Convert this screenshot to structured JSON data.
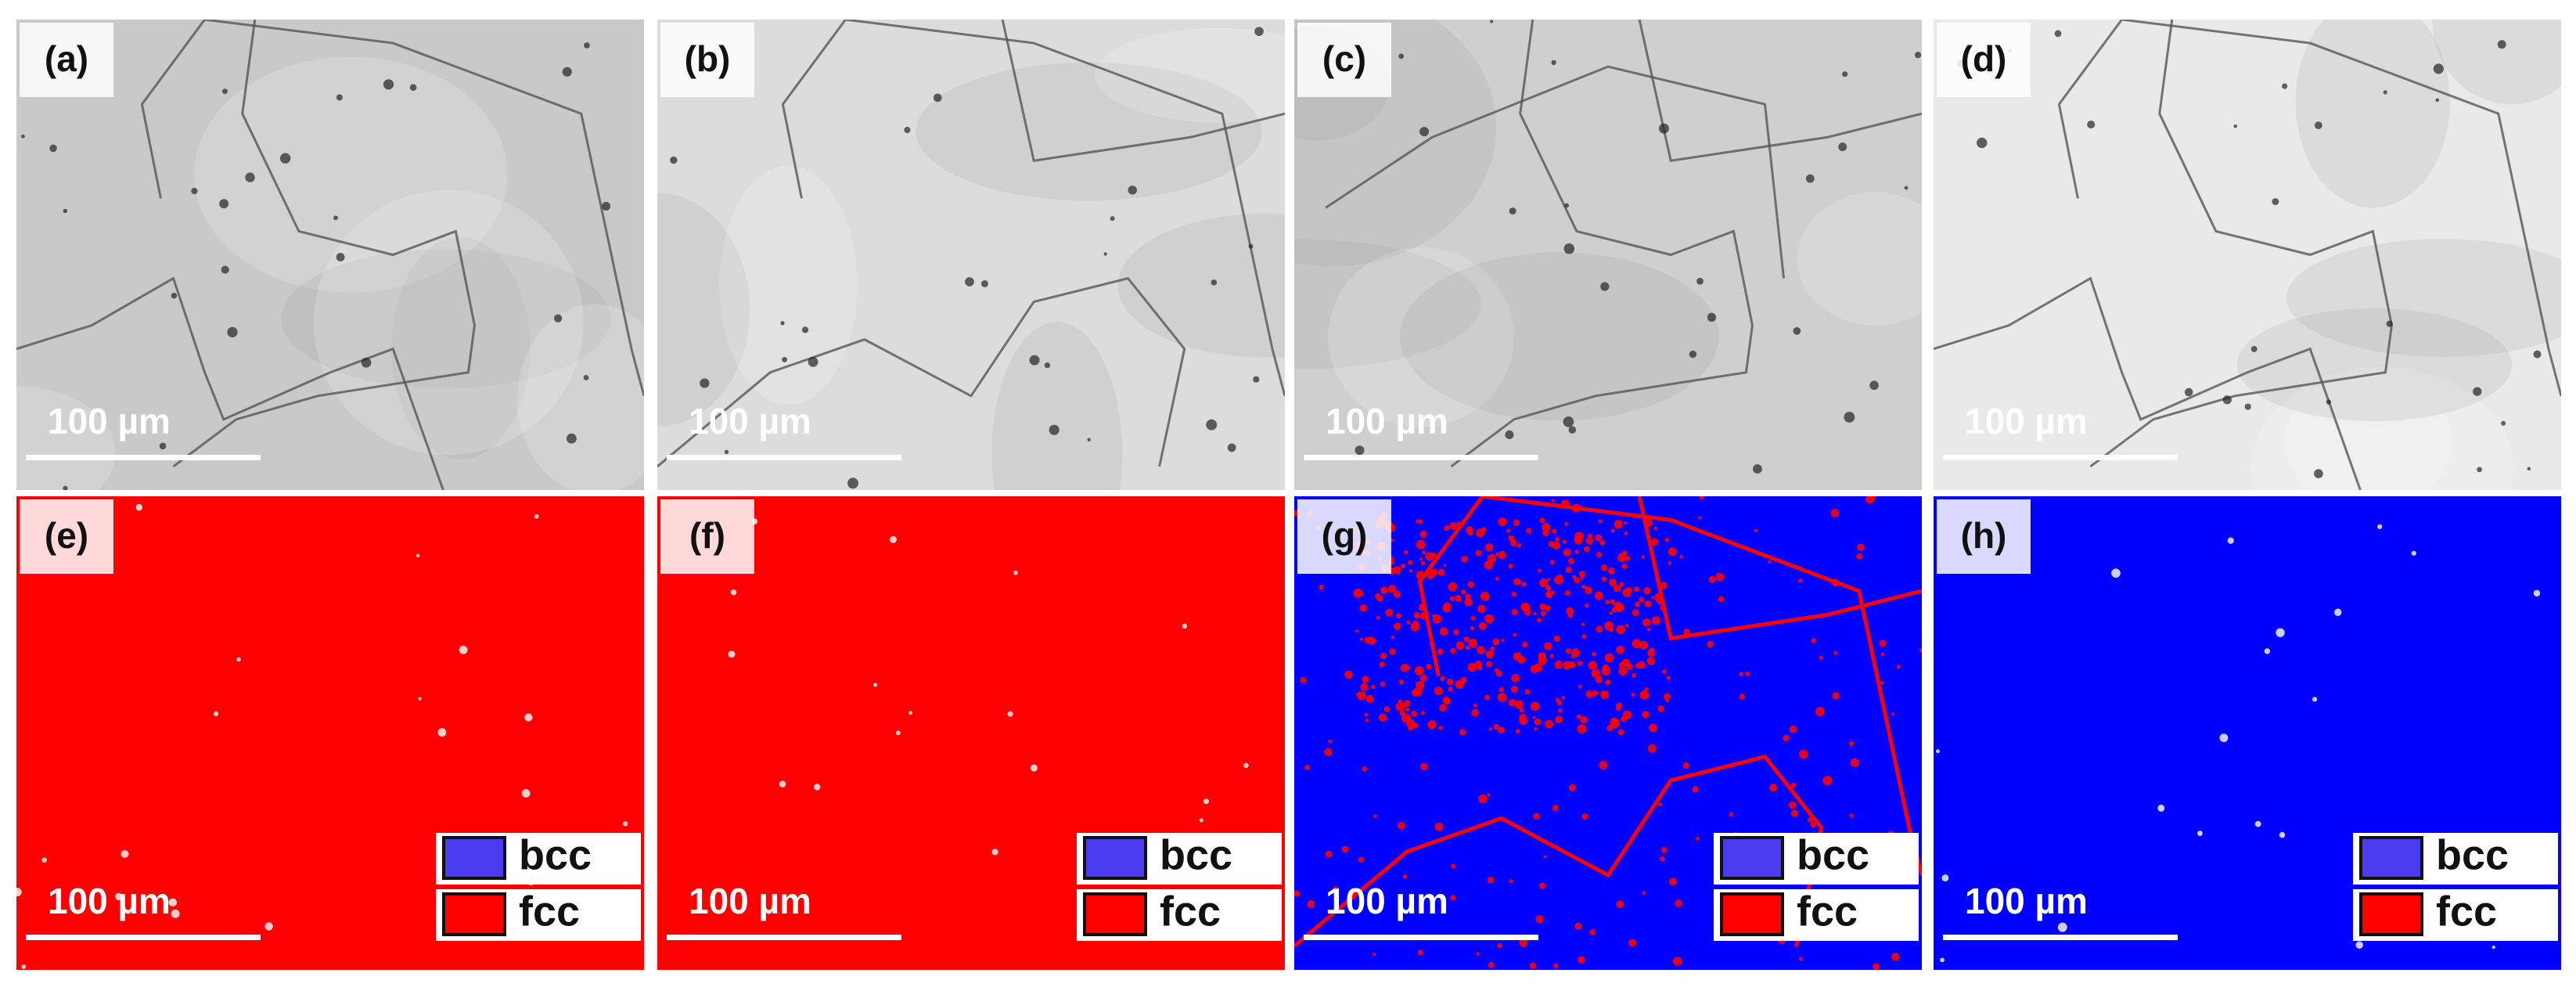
{
  "panels": [
    {
      "label": "(a)",
      "scale_bar": "100 µm"
    },
    {
      "label": "(b)",
      "scale_bar": "100 µm"
    },
    {
      "label": "(c)",
      "scale_bar": "100 µm"
    },
    {
      "label": "(d)",
      "scale_bar": "100 µm"
    },
    {
      "label": "(e)",
      "scale_bar": "100 µm"
    },
    {
      "label": "(f)",
      "scale_bar": "100 µm"
    },
    {
      "label": "(g)",
      "scale_bar": "100 µm"
    },
    {
      "label": "(h)",
      "scale_bar": "100 µm"
    }
  ],
  "legend": {
    "items": [
      "bcc",
      "fcc"
    ]
  }
}
